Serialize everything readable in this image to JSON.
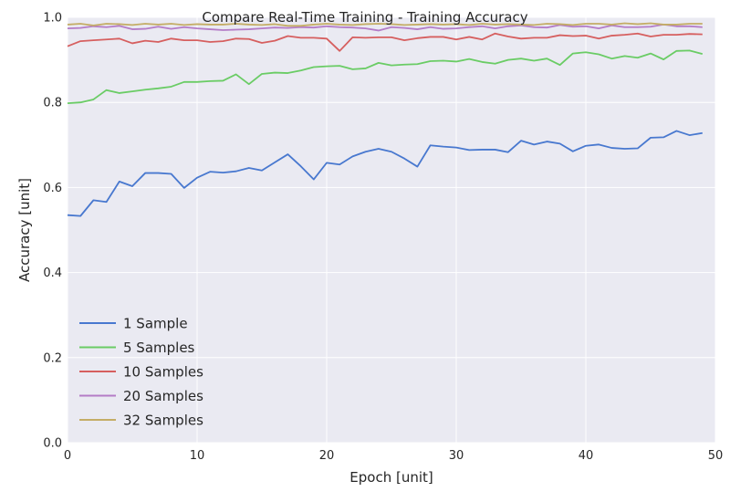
{
  "chart_data": {
    "type": "line",
    "title": "Compare Real-Time Training - Training Accuracy",
    "xlabel": "Epoch [unit]",
    "ylabel": "Accuracy [unit]",
    "xlim": [
      0,
      50
    ],
    "ylim": [
      0.0,
      1.0
    ],
    "xticks": [
      0,
      10,
      20,
      30,
      40,
      50
    ],
    "yticks": [
      0.0,
      0.2,
      0.4,
      0.6,
      0.8,
      1.0
    ],
    "xtick_labels": [
      "0",
      "10",
      "20",
      "30",
      "40",
      "50"
    ],
    "ytick_labels": [
      "0.0",
      "0.2",
      "0.4",
      "0.6",
      "0.8",
      "1.0"
    ],
    "grid": true,
    "legend_position": "lower-left",
    "x": [
      0,
      1,
      2,
      3,
      4,
      5,
      6,
      7,
      8,
      9,
      10,
      11,
      12,
      13,
      14,
      15,
      16,
      17,
      18,
      19,
      20,
      21,
      22,
      23,
      24,
      25,
      26,
      27,
      28,
      29,
      30,
      31,
      32,
      33,
      34,
      35,
      36,
      37,
      38,
      39,
      40,
      41,
      42,
      43,
      44,
      45,
      46,
      47,
      48,
      49
    ],
    "series": [
      {
        "name": "1 Sample",
        "color": "#4878cf",
        "values": [
          0.535,
          0.533,
          0.57,
          0.566,
          0.614,
          0.603,
          0.634,
          0.634,
          0.632,
          0.599,
          0.623,
          0.637,
          0.635,
          0.638,
          0.646,
          0.64,
          0.659,
          0.678,
          0.65,
          0.619,
          0.658,
          0.654,
          0.673,
          0.684,
          0.691,
          0.684,
          0.668,
          0.649,
          0.699,
          0.696,
          0.694,
          0.688,
          0.689,
          0.689,
          0.683,
          0.71,
          0.701,
          0.708,
          0.703,
          0.685,
          0.698,
          0.701,
          0.693,
          0.691,
          0.692,
          0.717,
          0.718,
          0.733,
          0.723,
          0.728
        ]
      },
      {
        "name": "5 Samples",
        "color": "#6acc65",
        "values": [
          0.798,
          0.8,
          0.807,
          0.829,
          0.822,
          0.826,
          0.83,
          0.833,
          0.837,
          0.848,
          0.848,
          0.85,
          0.851,
          0.866,
          0.843,
          0.867,
          0.87,
          0.869,
          0.875,
          0.883,
          0.885,
          0.886,
          0.878,
          0.88,
          0.893,
          0.887,
          0.889,
          0.89,
          0.897,
          0.898,
          0.896,
          0.902,
          0.895,
          0.891,
          0.9,
          0.903,
          0.898,
          0.903,
          0.888,
          0.915,
          0.918,
          0.913,
          0.903,
          0.909,
          0.905,
          0.915,
          0.901,
          0.921,
          0.922,
          0.914
        ]
      },
      {
        "name": "10 Samples",
        "color": "#d65f5f",
        "values": [
          0.932,
          0.944,
          0.946,
          0.948,
          0.95,
          0.939,
          0.945,
          0.942,
          0.95,
          0.946,
          0.946,
          0.942,
          0.944,
          0.95,
          0.949,
          0.94,
          0.945,
          0.956,
          0.952,
          0.952,
          0.95,
          0.921,
          0.953,
          0.952,
          0.953,
          0.953,
          0.946,
          0.951,
          0.954,
          0.954,
          0.948,
          0.954,
          0.948,
          0.962,
          0.955,
          0.95,
          0.952,
          0.952,
          0.958,
          0.956,
          0.957,
          0.95,
          0.957,
          0.959,
          0.962,
          0.955,
          0.959,
          0.959,
          0.961,
          0.96
        ]
      },
      {
        "name": "20 Samples",
        "color": "#b47cc7",
        "values": [
          0.974,
          0.975,
          0.979,
          0.977,
          0.98,
          0.972,
          0.973,
          0.978,
          0.973,
          0.977,
          0.974,
          0.972,
          0.97,
          0.971,
          0.972,
          0.974,
          0.976,
          0.975,
          0.977,
          0.976,
          0.979,
          0.977,
          0.976,
          0.974,
          0.969,
          0.977,
          0.975,
          0.972,
          0.977,
          0.973,
          0.974,
          0.977,
          0.979,
          0.974,
          0.979,
          0.981,
          0.977,
          0.976,
          0.982,
          0.978,
          0.979,
          0.974,
          0.981,
          0.977,
          0.977,
          0.978,
          0.983,
          0.979,
          0.979,
          0.977
        ]
      },
      {
        "name": "32 Samples",
        "color": "#c4ad66",
        "values": [
          0.983,
          0.985,
          0.981,
          0.985,
          0.984,
          0.982,
          0.985,
          0.983,
          0.985,
          0.982,
          0.984,
          0.983,
          0.983,
          0.985,
          0.983,
          0.982,
          0.984,
          0.98,
          0.98,
          0.983,
          0.985,
          0.983,
          0.982,
          0.984,
          0.985,
          0.984,
          0.982,
          0.983,
          0.984,
          0.983,
          0.984,
          0.982,
          0.985,
          0.983,
          0.984,
          0.983,
          0.982,
          0.985,
          0.984,
          0.982,
          0.985,
          0.985,
          0.983,
          0.986,
          0.984,
          0.986,
          0.983,
          0.983,
          0.985,
          0.985
        ]
      }
    ]
  }
}
